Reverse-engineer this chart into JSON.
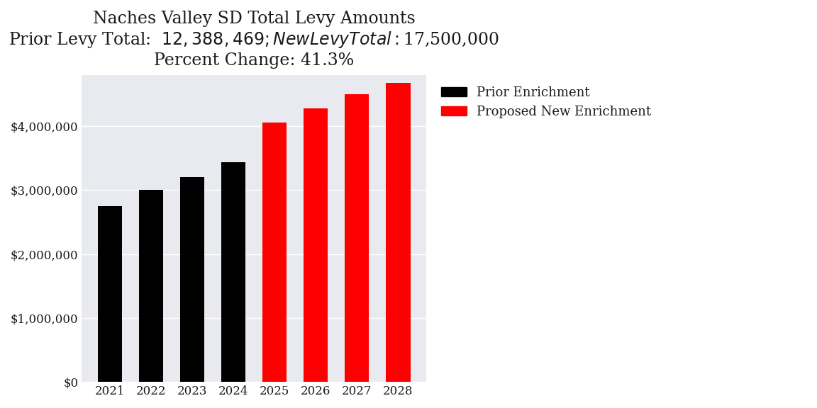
{
  "title_line1": "Naches Valley SD Total Levy Amounts",
  "title_line2": "Prior Levy Total:  $12,388,469; New Levy Total: $17,500,000",
  "title_line3": "Percent Change: 41.3%",
  "years": [
    2021,
    2022,
    2023,
    2024,
    2025,
    2026,
    2027,
    2028
  ],
  "values": [
    2750000,
    3000000,
    3200000,
    3438469,
    4050000,
    4275000,
    4500000,
    4675000
  ],
  "bar_colors": [
    "#000000",
    "#000000",
    "#000000",
    "#000000",
    "#ff0000",
    "#ff0000",
    "#ff0000",
    "#ff0000"
  ],
  "legend_labels": [
    "Prior Enrichment",
    "Proposed New Enrichment"
  ],
  "legend_colors": [
    "#000000",
    "#ff0000"
  ],
  "plot_bg_color": "#e8eaf0",
  "fig_bg_color": "#ffffff",
  "text_color": "#1a1a1a",
  "ylim": [
    0,
    4800000
  ],
  "ytick_interval": 1000000,
  "title_fontsize": 17,
  "tick_fontsize": 12,
  "legend_fontsize": 13,
  "bar_width": 0.6
}
